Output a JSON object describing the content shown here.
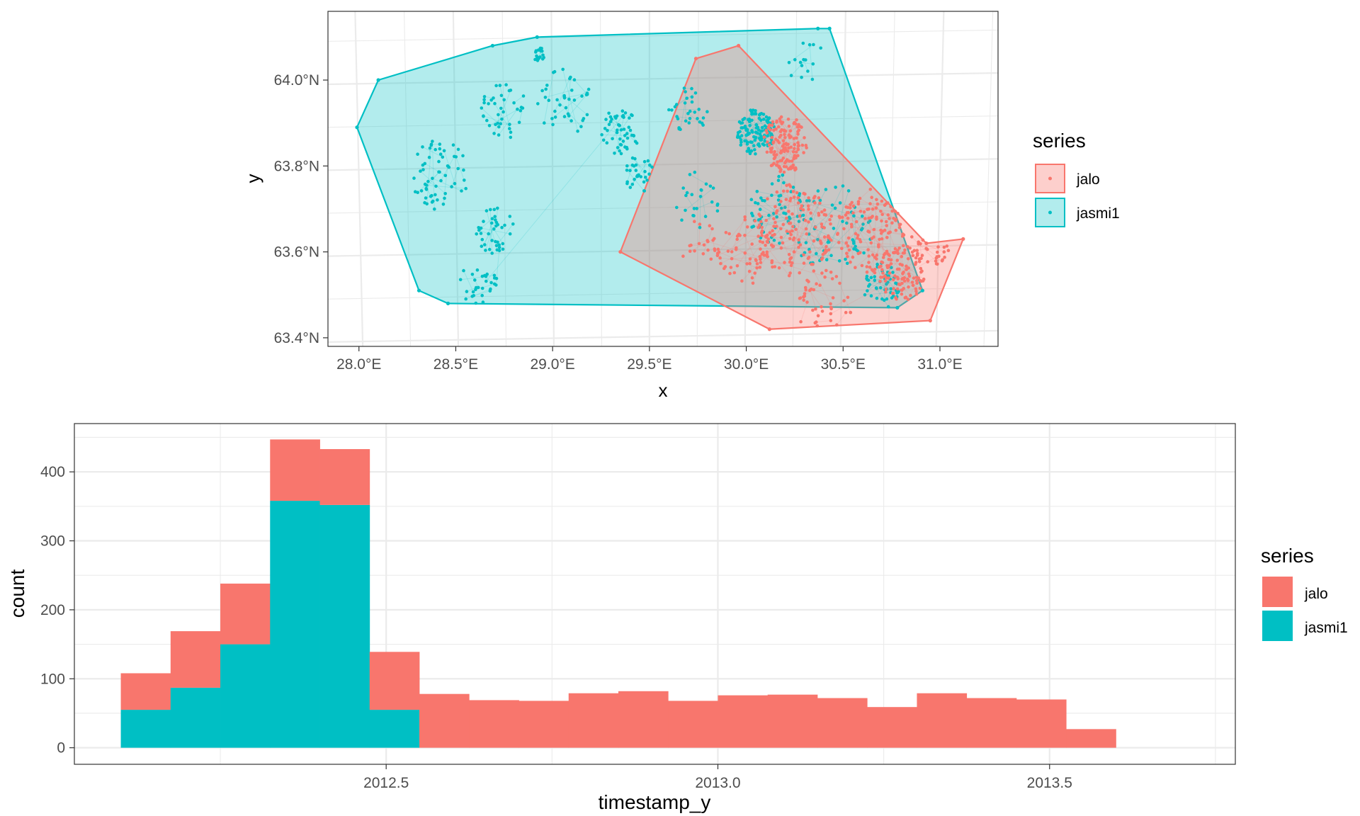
{
  "colors": {
    "jalo": "#F8766D",
    "jasmi1": "#00BFC4",
    "grid": "#EBEBEB",
    "axis_text": "#4D4D4D",
    "frame": "#333333"
  },
  "chart_data": [
    {
      "type": "scatter",
      "xlabel": "x",
      "ylabel": "y",
      "xlim": [
        27.84,
        31.3
      ],
      "ylim": [
        63.38,
        64.16
      ],
      "x_ticks": [
        28.0,
        28.5,
        29.0,
        29.5,
        30.0,
        30.5,
        31.0
      ],
      "x_tick_labels": [
        "28.0°E",
        "28.5°E",
        "29.0°E",
        "29.5°E",
        "30.0°E",
        "30.5°E",
        "31.0°E"
      ],
      "y_ticks": [
        63.4,
        63.6,
        63.8,
        64.0
      ],
      "y_tick_labels": [
        "63.4°N",
        "63.6°N",
        "63.8°N",
        "64.0°N"
      ],
      "grid": true,
      "legend": {
        "title": "series",
        "position": "right",
        "entries": [
          "jalo",
          "jasmi1"
        ]
      },
      "series": [
        {
          "name": "jasmi1",
          "color": "#00BFC4",
          "hull": [
            [
              27.99,
              63.89
            ],
            [
              28.1,
              64.0
            ],
            [
              28.69,
              64.08
            ],
            [
              28.92,
              64.1
            ],
            [
              30.37,
              64.12
            ],
            [
              30.43,
              64.12
            ],
            [
              30.91,
              63.51
            ],
            [
              30.78,
              63.47
            ],
            [
              28.46,
              63.48
            ],
            [
              28.31,
              63.51
            ]
          ],
          "clusters": [
            {
              "x": 28.93,
              "y": 64.06,
              "r": 0.03,
              "n": 20
            },
            {
              "x": 28.75,
              "y": 63.93,
              "r": 0.12,
              "n": 40
            },
            {
              "x": 28.42,
              "y": 63.78,
              "r": 0.15,
              "n": 60
            },
            {
              "x": 28.7,
              "y": 63.65,
              "r": 0.1,
              "n": 40
            },
            {
              "x": 28.62,
              "y": 63.53,
              "r": 0.1,
              "n": 30
            },
            {
              "x": 29.35,
              "y": 63.88,
              "r": 0.1,
              "n": 50
            },
            {
              "x": 29.45,
              "y": 63.78,
              "r": 0.08,
              "n": 30
            },
            {
              "x": 29.7,
              "y": 63.93,
              "r": 0.1,
              "n": 30
            },
            {
              "x": 30.05,
              "y": 63.88,
              "r": 0.1,
              "n": 120
            },
            {
              "x": 30.15,
              "y": 63.7,
              "r": 0.15,
              "n": 60
            },
            {
              "x": 30.45,
              "y": 63.65,
              "r": 0.2,
              "n": 60
            },
            {
              "x": 30.7,
              "y": 63.52,
              "r": 0.1,
              "n": 50
            },
            {
              "x": 30.3,
              "y": 64.05,
              "r": 0.1,
              "n": 15
            },
            {
              "x": 29.05,
              "y": 63.95,
              "r": 0.15,
              "n": 40
            },
            {
              "x": 29.75,
              "y": 63.72,
              "r": 0.12,
              "n": 25
            }
          ]
        },
        {
          "name": "jalo",
          "color": "#F8766D",
          "hull": [
            [
              29.74,
              64.05
            ],
            [
              29.96,
              64.08
            ],
            [
              30.93,
              63.62
            ],
            [
              31.12,
              63.63
            ],
            [
              30.95,
              63.44
            ],
            [
              30.12,
              63.42
            ],
            [
              29.35,
              63.6
            ]
          ],
          "clusters": [
            {
              "x": 30.2,
              "y": 63.85,
              "r": 0.12,
              "n": 140
            },
            {
              "x": 30.25,
              "y": 63.65,
              "r": 0.2,
              "n": 140
            },
            {
              "x": 30.65,
              "y": 63.65,
              "r": 0.18,
              "n": 140
            },
            {
              "x": 30.8,
              "y": 63.55,
              "r": 0.12,
              "n": 100
            },
            {
              "x": 30.0,
              "y": 63.6,
              "r": 0.15,
              "n": 60
            },
            {
              "x": 30.95,
              "y": 63.62,
              "r": 0.1,
              "n": 40
            },
            {
              "x": 30.4,
              "y": 63.48,
              "r": 0.15,
              "n": 50
            },
            {
              "x": 29.75,
              "y": 63.62,
              "r": 0.1,
              "n": 20
            }
          ]
        }
      ]
    },
    {
      "type": "bar",
      "stacked": true,
      "xlabel": "timestamp_y",
      "ylabel": "count",
      "xlim": [
        2012.03,
        2013.78
      ],
      "ylim": [
        -24,
        470
      ],
      "x_ticks": [
        2012.5,
        2013.0,
        2013.5
      ],
      "x_tick_labels": [
        "2012.5",
        "2013.0",
        "2013.5"
      ],
      "y_ticks": [
        0,
        100,
        200,
        300,
        400
      ],
      "y_tick_labels": [
        "0",
        "100",
        "200",
        "300",
        "400"
      ],
      "grid": true,
      "bin_start": 2012.1,
      "bin_width": 0.075,
      "legend": {
        "title": "series",
        "position": "right",
        "entries": [
          "jalo",
          "jasmi1"
        ]
      },
      "series": [
        {
          "name": "jasmi1",
          "color": "#00BFC4",
          "values": [
            55,
            87,
            150,
            358,
            352,
            55,
            0,
            0,
            0,
            0,
            0,
            0,
            0,
            0,
            0,
            0,
            0,
            0,
            0,
            0
          ]
        },
        {
          "name": "jalo",
          "color": "#F8766D",
          "values": [
            53,
            82,
            88,
            89,
            81,
            84,
            78,
            69,
            68,
            79,
            82,
            68,
            76,
            77,
            72,
            59,
            79,
            72,
            70,
            27
          ]
        }
      ]
    }
  ]
}
